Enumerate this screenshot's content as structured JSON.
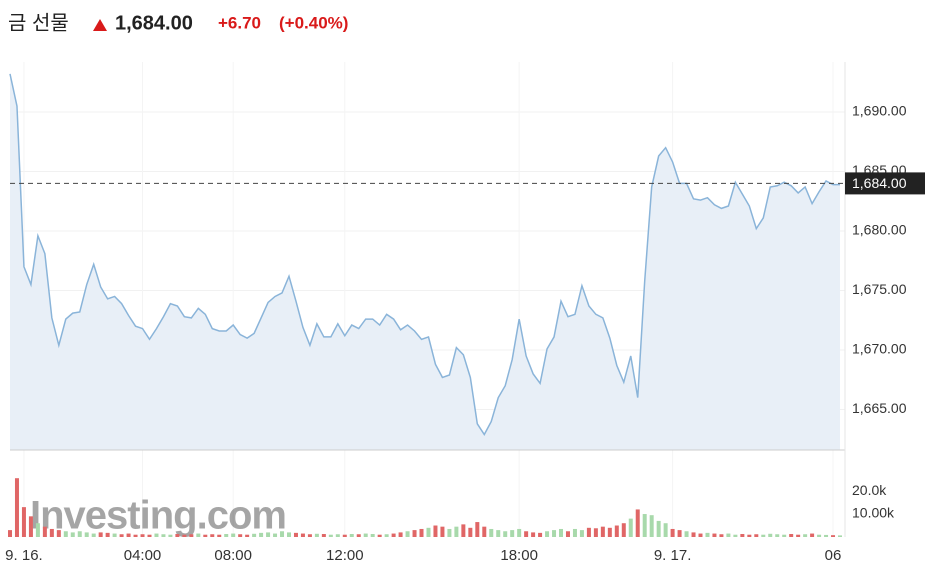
{
  "header": {
    "name": "금 선물",
    "price": "1,684.00",
    "change": "+6.70",
    "change_pct": "(+0.40%)"
  },
  "chart_data": {
    "type": "area",
    "values": [
      1693.2,
      1690.5,
      1677.0,
      1675.5,
      1679.6,
      1678.1,
      1672.7,
      1670.4,
      1672.6,
      1673.1,
      1673.2,
      1675.5,
      1677.2,
      1675.3,
      1674.3,
      1674.5,
      1673.9,
      1672.9,
      1672.0,
      1671.8,
      1670.9,
      1671.8,
      1672.8,
      1673.9,
      1673.7,
      1672.8,
      1672.7,
      1673.5,
      1673.0,
      1671.8,
      1671.6,
      1671.6,
      1672.1,
      1671.3,
      1671.0,
      1671.4,
      1672.7,
      1674.0,
      1674.5,
      1674.8,
      1676.2,
      1674.1,
      1671.9,
      1670.4,
      1672.2,
      1671.1,
      1671.1,
      1672.2,
      1671.2,
      1672.1,
      1671.8,
      1672.6,
      1672.6,
      1672.1,
      1673.0,
      1672.6,
      1671.7,
      1672.1,
      1671.6,
      1670.9,
      1671.1,
      1668.8,
      1667.7,
      1667.9,
      1670.2,
      1669.6,
      1667.7,
      1663.8,
      1662.9,
      1664.0,
      1666.0,
      1667.0,
      1669.2,
      1672.6,
      1669.5,
      1668.0,
      1667.2,
      1670.1,
      1671.1,
      1674.1,
      1672.8,
      1673.0,
      1675.4,
      1673.7,
      1673.0,
      1672.7,
      1671.0,
      1668.7,
      1667.3,
      1669.5,
      1666.0,
      1675.8,
      1683.7,
      1686.3,
      1687.0,
      1685.8,
      1684.0,
      1684.0,
      1682.7,
      1682.6,
      1682.8,
      1682.2,
      1681.9,
      1682.1,
      1684.1,
      1683.1,
      1682.1,
      1680.2,
      1681.1,
      1683.7,
      1683.8,
      1684.1,
      1683.8,
      1683.2,
      1683.7,
      1682.3,
      1683.3,
      1684.2,
      1683.9,
      1683.9
    ],
    "color": "#8ab4d9",
    "fill": "#e8eff7",
    "ylim": [
      1661.6,
      1694.2
    ],
    "yticks": [
      {
        "value": 1665,
        "label": "1,665.00"
      },
      {
        "value": 1670,
        "label": "1,670.00"
      },
      {
        "value": 1675,
        "label": "1,675.00"
      },
      {
        "value": 1680,
        "label": "1,680.00"
      },
      {
        "value": 1685,
        "label": "1,685.00"
      },
      {
        "value": 1690,
        "label": "1,690.00"
      }
    ],
    "current": {
      "value": 1684,
      "label": "1,684.00"
    },
    "xticks": [
      {
        "value": 2,
        "label": "9. 16."
      },
      {
        "value": 19,
        "label": "04:00"
      },
      {
        "value": 32,
        "label": "08:00"
      },
      {
        "value": 48,
        "label": "12:00"
      },
      {
        "value": 73,
        "label": "18:00"
      },
      {
        "value": 95,
        "label": "9. 17."
      },
      {
        "value": 118,
        "label": "06"
      }
    ],
    "volume": {
      "values": [
        3000,
        25600,
        13000,
        9000,
        6000,
        4500,
        3500,
        3000,
        2500,
        2000,
        2500,
        2000,
        1500,
        2000,
        1800,
        1500,
        1200,
        1500,
        1000,
        1200,
        1000,
        1500,
        1200,
        1000,
        1300,
        1000,
        1200,
        1500,
        1000,
        1200,
        1000,
        1300,
        1500,
        1200,
        1000,
        1400,
        1800,
        2000,
        1500,
        2500,
        2000,
        1800,
        1500,
        1200,
        1400,
        1300,
        1000,
        1200,
        1000,
        1300,
        1200,
        1500,
        1300,
        1000,
        1200,
        1500,
        2000,
        2500,
        3000,
        3500,
        4000,
        5000,
        4500,
        3500,
        4500,
        5500,
        4000,
        6500,
        4500,
        3500,
        3000,
        2500,
        3000,
        3500,
        2500,
        2000,
        1800,
        2500,
        3000,
        3500,
        2500,
        3500,
        3000,
        4000,
        3800,
        4500,
        4000,
        5000,
        6000,
        8000,
        12000,
        10000,
        9500,
        7000,
        6000,
        3500,
        3000,
        2500,
        2000,
        1500,
        1800,
        1500,
        1200,
        1500,
        1000,
        1300,
        1000,
        1200,
        1000,
        1400,
        1200,
        1000,
        1300,
        1000,
        1200,
        1500,
        1000,
        900,
        800,
        700
      ],
      "up_color": "#a8d9ab",
      "down_color": "#e06666",
      "ylim": [
        0,
        35700
      ],
      "yticks": [
        {
          "value": 10000,
          "label": "10.00k"
        },
        {
          "value": 20000,
          "label": "20.0k"
        }
      ]
    },
    "watermark": "Investing.com"
  }
}
